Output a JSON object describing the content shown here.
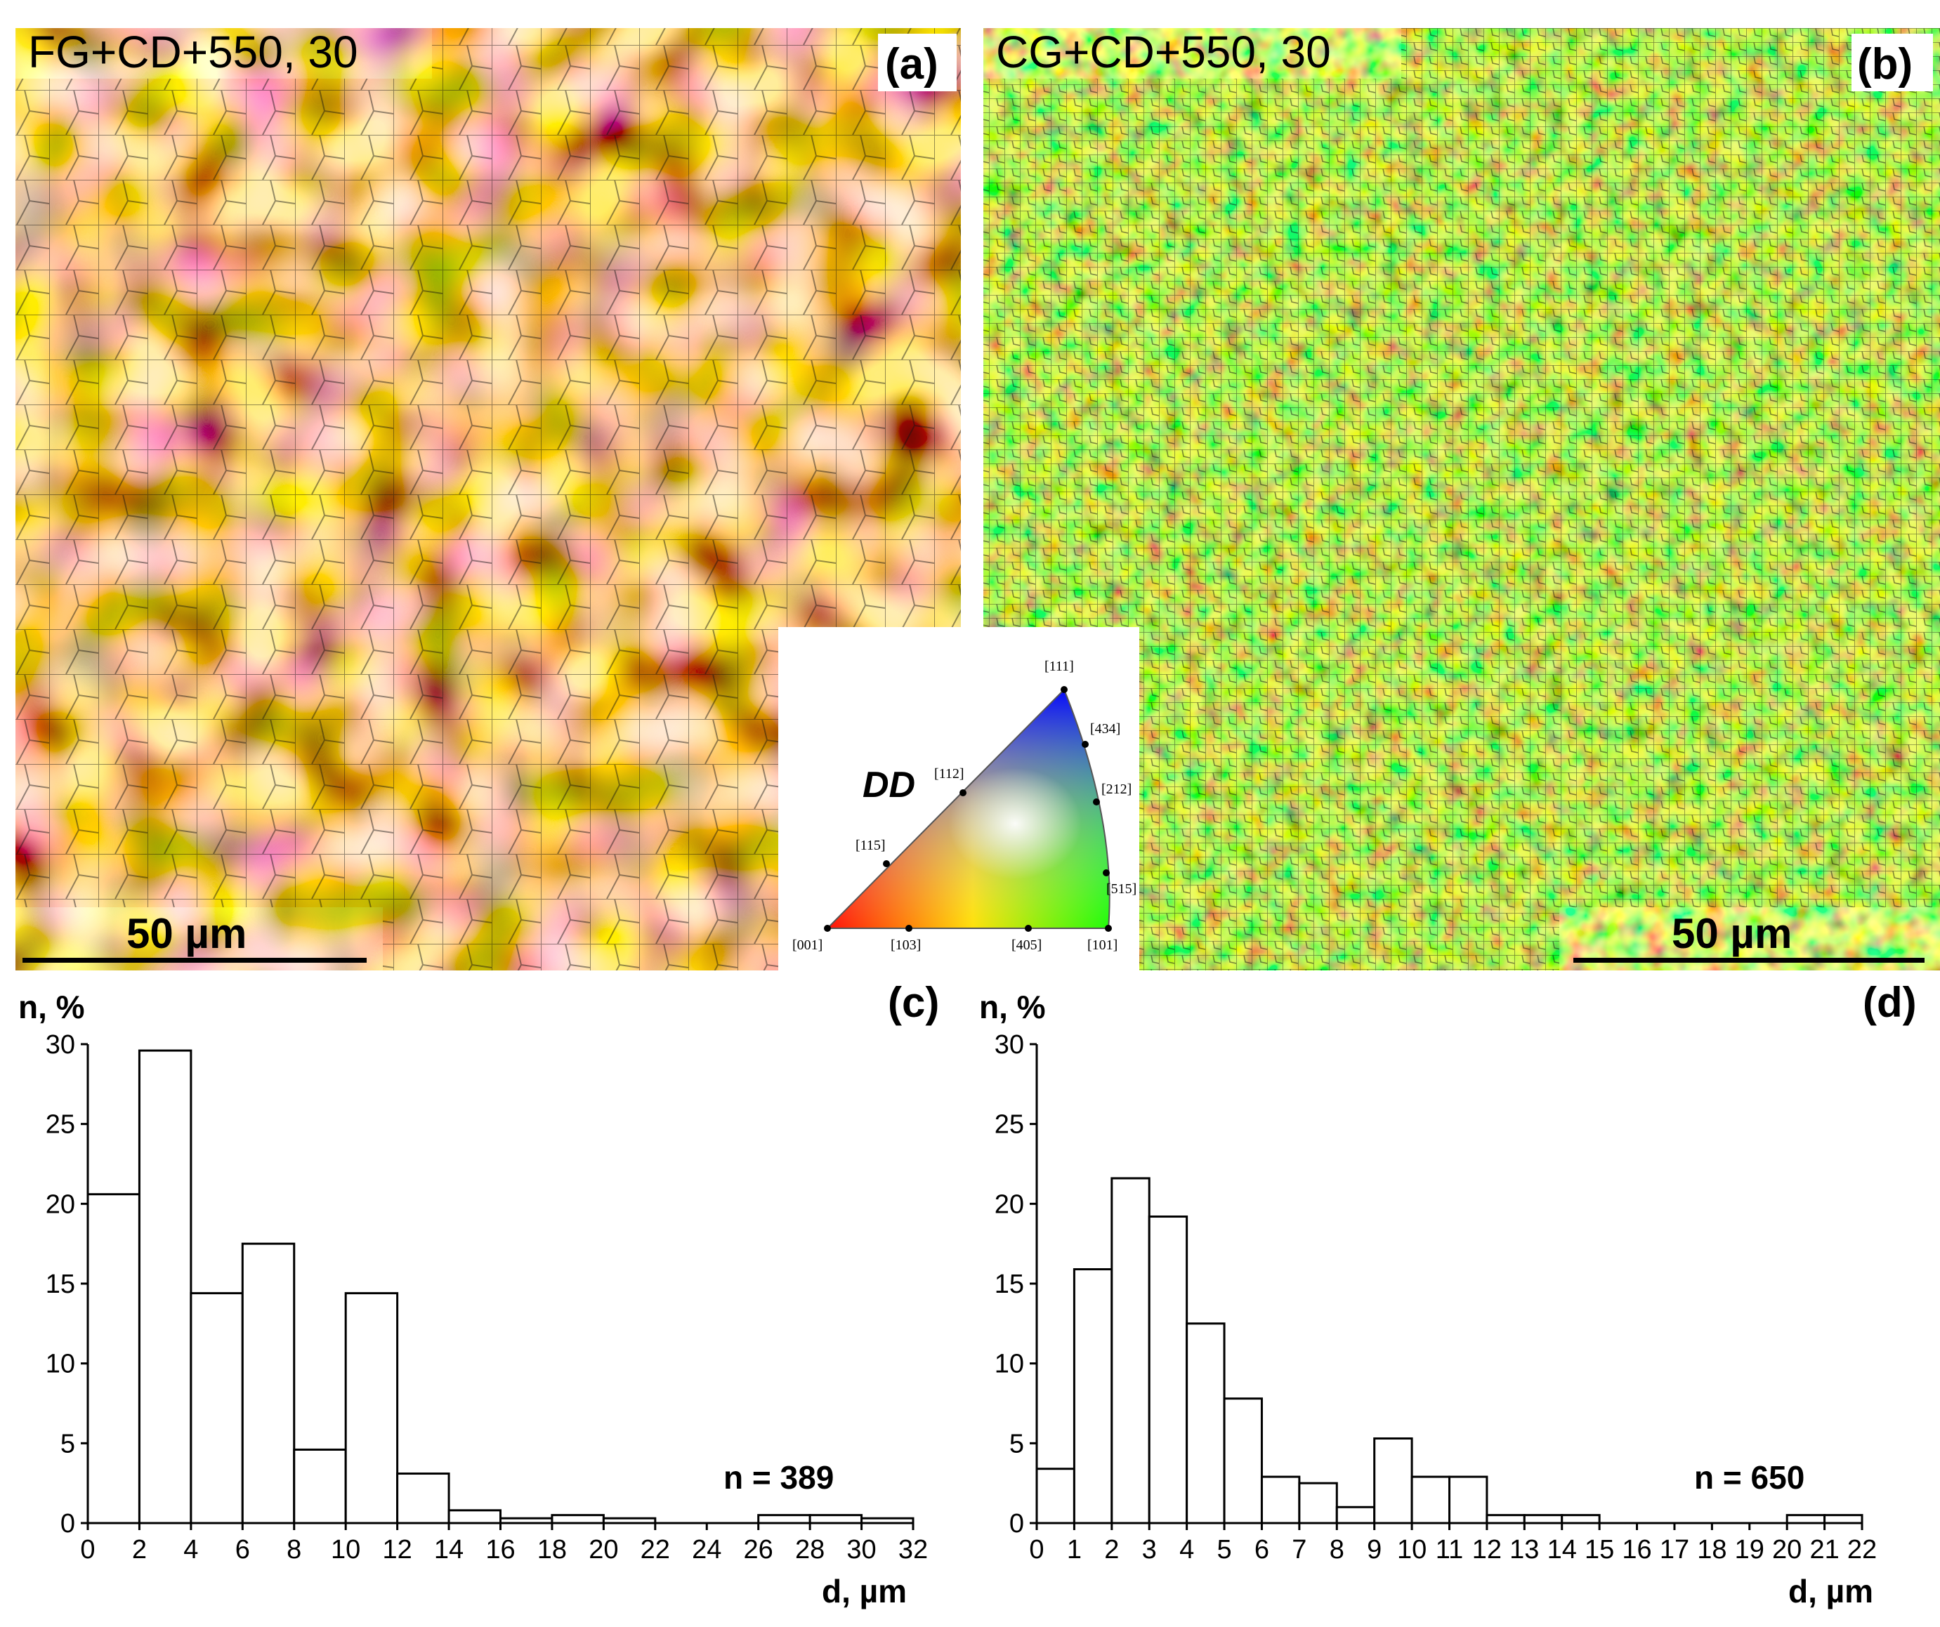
{
  "panels": {
    "a": {
      "title": "FG+CD+550, 30",
      "label": "(a)",
      "scale": "50 µm"
    },
    "b": {
      "title": "CG+CD+550, 30",
      "label": "(b)",
      "scale": "50 µm"
    }
  },
  "ipf": {
    "axis_label": "DD",
    "poles": [
      "[111]",
      "[434]",
      "[212]",
      "[515]",
      "[101]",
      "[405]",
      "[103]",
      "[001]",
      "[115]",
      "[112]"
    ],
    "colors": {
      "c001": "#ff0000",
      "c101": "#00ff00",
      "c111": "#0000ff"
    }
  },
  "chart_data": [
    {
      "type": "bar",
      "panel": "(c)",
      "ylabel": "n, %",
      "xlabel": "d, µm",
      "annotation": "n = 389",
      "bin_edges": [
        0,
        2,
        4,
        6,
        8,
        10,
        12,
        14,
        16,
        18,
        20,
        22,
        24,
        26,
        28,
        30,
        32
      ],
      "values": [
        20.6,
        29.6,
        14.4,
        17.5,
        4.6,
        14.4,
        3.1,
        0.8,
        0.3,
        0.5,
        0.3,
        0,
        0,
        0.5,
        0.5,
        0.3
      ],
      "xticks": [
        "0",
        "2",
        "4",
        "6",
        "8",
        "10",
        "12",
        "14",
        "16",
        "18",
        "20",
        "22",
        "24",
        "26",
        "28",
        "30",
        "32"
      ],
      "yticks": [
        "0",
        "5",
        "10",
        "15",
        "20",
        "25",
        "30"
      ],
      "xlim": [
        0,
        32
      ],
      "ylim": [
        0,
        30
      ]
    },
    {
      "type": "bar",
      "panel": "(d)",
      "ylabel": "n, %",
      "xlabel": "d, µm",
      "annotation": "n = 650",
      "bin_edges": [
        0,
        1,
        2,
        3,
        4,
        5,
        6,
        7,
        8,
        9,
        10,
        11,
        12,
        13,
        14,
        15,
        16,
        17,
        18,
        19,
        20,
        21,
        22
      ],
      "values": [
        3.4,
        15.9,
        21.6,
        19.2,
        12.5,
        7.8,
        2.9,
        2.5,
        1.0,
        5.3,
        2.9,
        2.9,
        0.5,
        0.5,
        0.5,
        0,
        0,
        0,
        0,
        0,
        0.5,
        0.5
      ],
      "xticks": [
        "0",
        "1",
        "2",
        "3",
        "4",
        "5",
        "6",
        "7",
        "8",
        "9",
        "10",
        "11",
        "12",
        "13",
        "14",
        "15",
        "16",
        "17",
        "18",
        "19",
        "20",
        "21",
        "22"
      ],
      "yticks": [
        "0",
        "5",
        "10",
        "15",
        "20",
        "25",
        "30"
      ],
      "xlim": [
        0,
        22
      ],
      "ylim": [
        0,
        30
      ]
    }
  ]
}
